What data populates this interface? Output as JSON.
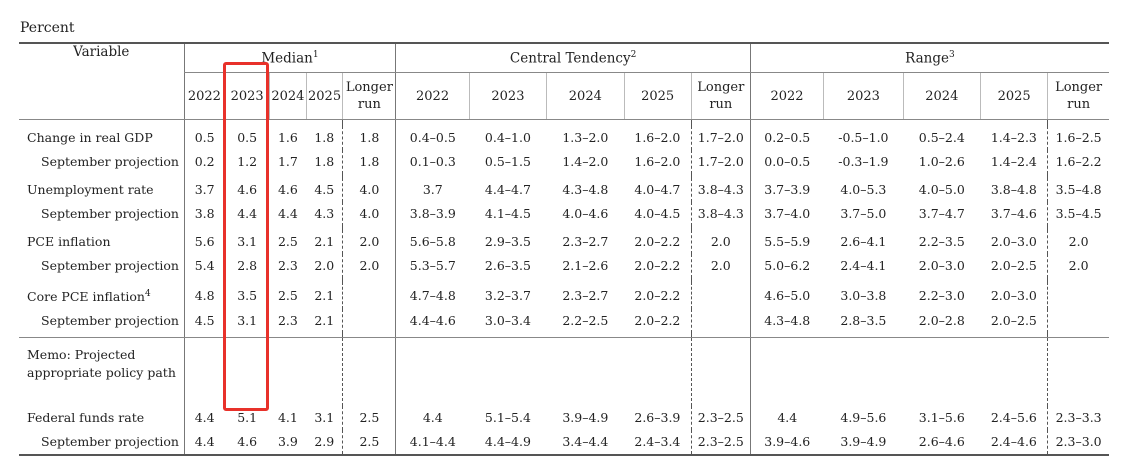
{
  "unit": "Percent",
  "header": {
    "variable": "Variable",
    "groups": [
      {
        "label": "Median",
        "sup": "1"
      },
      {
        "label": "Central Tendency",
        "sup": "2"
      },
      {
        "label": "Range",
        "sup": "3"
      }
    ],
    "years": [
      "2022",
      "2023",
      "2024",
      "2025"
    ],
    "longer_run": [
      "Longer",
      "run"
    ]
  },
  "rows": {
    "gdp": {
      "label": "Change in real GDP",
      "median": [
        "0.5",
        "0.5",
        "1.6",
        "1.8",
        "1.8"
      ],
      "central": [
        "0.4–0.5",
        "0.4–1.0",
        "1.3–2.0",
        "1.6–2.0",
        "1.7–2.0"
      ],
      "range": [
        "0.2–0.5",
        "-0.5–1.0",
        "0.5–2.4",
        "1.4–2.3",
        "1.6–2.5"
      ]
    },
    "gdp_sep": {
      "label": "September projection",
      "median": [
        "0.2",
        "1.2",
        "1.7",
        "1.8",
        "1.8"
      ],
      "central": [
        "0.1–0.3",
        "0.5–1.5",
        "1.4–2.0",
        "1.6–2.0",
        "1.7–2.0"
      ],
      "range": [
        "0.0–0.5",
        "-0.3–1.9",
        "1.0–2.6",
        "1.4–2.4",
        "1.6–2.2"
      ]
    },
    "unemp": {
      "label": "Unemployment rate",
      "median": [
        "3.7",
        "4.6",
        "4.6",
        "4.5",
        "4.0"
      ],
      "central": [
        "3.7",
        "4.4–4.7",
        "4.3–4.8",
        "4.0–4.7",
        "3.8–4.3"
      ],
      "range": [
        "3.7–3.9",
        "4.0–5.3",
        "4.0–5.0",
        "3.8–4.8",
        "3.5–4.8"
      ]
    },
    "unemp_sep": {
      "label": "September projection",
      "median": [
        "3.8",
        "4.4",
        "4.4",
        "4.3",
        "4.0"
      ],
      "central": [
        "3.8–3.9",
        "4.1–4.5",
        "4.0–4.6",
        "4.0–4.5",
        "3.8–4.3"
      ],
      "range": [
        "3.7–4.0",
        "3.7–5.0",
        "3.7–4.7",
        "3.7–4.6",
        "3.5–4.5"
      ]
    },
    "pce": {
      "label": "PCE inflation",
      "median": [
        "5.6",
        "3.1",
        "2.5",
        "2.1",
        "2.0"
      ],
      "central": [
        "5.6–5.8",
        "2.9–3.5",
        "2.3–2.7",
        "2.0–2.2",
        "2.0"
      ],
      "range": [
        "5.5–5.9",
        "2.6–4.1",
        "2.2–3.5",
        "2.0–3.0",
        "2.0"
      ]
    },
    "pce_sep": {
      "label": "September projection",
      "median": [
        "5.4",
        "2.8",
        "2.3",
        "2.0",
        "2.0"
      ],
      "central": [
        "5.3–5.7",
        "2.6–3.5",
        "2.1–2.6",
        "2.0–2.2",
        "2.0"
      ],
      "range": [
        "5.0–6.2",
        "2.4–4.1",
        "2.0–3.0",
        "2.0–2.5",
        "2.0"
      ]
    },
    "core": {
      "label": "Core PCE inflation",
      "sup": "4",
      "median": [
        "4.8",
        "3.5",
        "2.5",
        "2.1",
        ""
      ],
      "central": [
        "4.7–4.8",
        "3.2–3.7",
        "2.3–2.7",
        "2.0–2.2",
        ""
      ],
      "range": [
        "4.6–5.0",
        "3.0–3.8",
        "2.2–3.0",
        "2.0–3.0",
        ""
      ]
    },
    "core_sep": {
      "label": "September projection",
      "median": [
        "4.5",
        "3.1",
        "2.3",
        "2.1",
        ""
      ],
      "central": [
        "4.4–4.6",
        "3.0–3.4",
        "2.2–2.5",
        "2.0–2.2",
        ""
      ],
      "range": [
        "4.3–4.8",
        "2.8–3.5",
        "2.0–2.8",
        "2.0–2.5",
        ""
      ]
    },
    "memo": {
      "line1": "Memo: Projected",
      "line2": "appropriate policy path"
    },
    "ffr": {
      "label": "Federal funds rate",
      "median": [
        "4.4",
        "5.1",
        "4.1",
        "3.1",
        "2.5"
      ],
      "central": [
        "4.4",
        "5.1–5.4",
        "3.9–4.9",
        "2.6–3.9",
        "2.3–2.5"
      ],
      "range": [
        "4.4",
        "4.9–5.6",
        "3.1–5.6",
        "2.4–5.6",
        "2.3–3.3"
      ]
    },
    "ffr_sep": {
      "label": "September projection",
      "median": [
        "4.4",
        "4.6",
        "3.9",
        "2.9",
        "2.5"
      ],
      "central": [
        "4.1–4.4",
        "4.4–4.9",
        "3.4–4.4",
        "2.4–3.4",
        "2.3–2.5"
      ],
      "range": [
        "3.9–4.6",
        "3.9–4.9",
        "2.6–4.6",
        "2.4–4.6",
        "2.3–3.0"
      ]
    }
  },
  "highlight_color": "#e8312a"
}
